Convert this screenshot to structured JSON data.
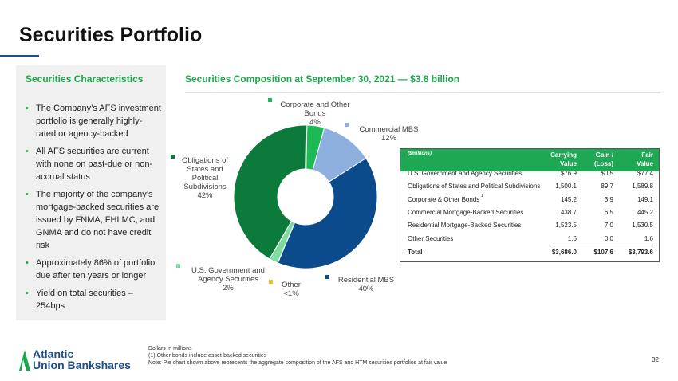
{
  "title": "Securities Portfolio",
  "characteristics": {
    "heading": "Securities Characteristics",
    "bullets": [
      "The Company’s AFS investment portfolio is generally highly-rated or agency-backed",
      "All AFS securities are current with none on past-due or non-accrual status",
      "The majority of the company’s mortgage-backed securities are issued by FNMA, FHLMC, and GNMA and do not have credit risk",
      "Approximately 86% of portfolio due after ten years or longer",
      "Yield on total securities – 254bps"
    ]
  },
  "chart_data": {
    "type": "pie",
    "title": "Securities Composition at September 30, 2021 — $3.8 billion",
    "donut": true,
    "slices": [
      {
        "name": "Corporate and Other Bonds",
        "label": "4%",
        "value": 3.9,
        "color": "#1db954"
      },
      {
        "name": "Commercial MBS",
        "label": "12%",
        "value": 11.7,
        "color": "#8eb0df"
      },
      {
        "name": "Residential MBS",
        "label": "40%",
        "value": 40.3,
        "color": "#0b4a8b"
      },
      {
        "name": "Other",
        "label": "<1%",
        "value": 0.04,
        "color": "#f0c020"
      },
      {
        "name": "U.S. Government and Agency Securities",
        "label": "2%",
        "value": 2.0,
        "color": "#7fdca0"
      },
      {
        "name": "Obligations of States and Political Subdivisions",
        "label": "42%",
        "value": 41.9,
        "color": "#0c7a3a"
      }
    ]
  },
  "table": {
    "units": "($millions)",
    "headers": [
      "Carrying Value",
      "Gain / (Loss)",
      "Fair Value"
    ],
    "header_lines": [
      [
        "Carrying",
        "Value"
      ],
      [
        "Gain /",
        "(Loss)"
      ],
      [
        "Fair",
        "Value"
      ]
    ],
    "rows": [
      [
        "U.S. Government and Agency Securities",
        "$76.9",
        "$0.5",
        "$77.4"
      ],
      [
        "Obligations of States and Political Subdivisions",
        "1,500.1",
        "89.7",
        "1,589.8"
      ],
      [
        "Corporate & Other Bonds",
        "145.2",
        "3.9",
        "149.1"
      ],
      [
        "Commercial Mortgage-Backed Securities",
        "438.7",
        "6.5",
        "445.2"
      ],
      [
        "Residential Mortgage-Backed Securities",
        "1,523.5",
        "7.0",
        "1,530.5"
      ],
      [
        "Other Securities",
        "1.6",
        "0.0",
        "1.6"
      ]
    ],
    "footnote_marker": "1",
    "total": [
      "Total",
      "$3,686.0",
      "$107.6",
      "$3,793.6"
    ]
  },
  "footnotes": [
    "Dollars in millions",
    "(1) Other bonds include asset-backed securities",
    "Note: Pie chart shown above represents the aggregate composition of the AFS and HTM securities portfolios at fair value"
  ],
  "logo": {
    "line1": "Atlantic",
    "line2": "Union Bankshares"
  },
  "page_number": "32"
}
